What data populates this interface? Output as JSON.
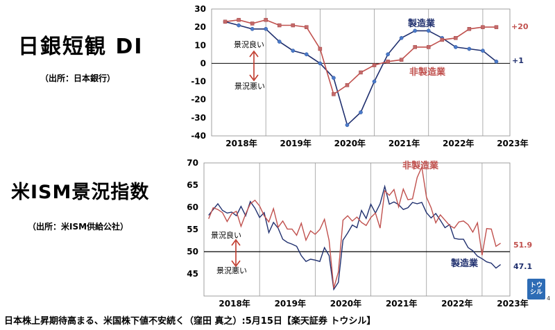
{
  "tankan": {
    "title": "日銀短観 DI",
    "source": "（出所：日本銀行）"
  },
  "ism": {
    "title": "米ISM景況指数",
    "source": "（出所：米ISM供給公社）"
  },
  "footer": "日本株上昇期待高まる、米国株下値不安続く（窪田 真之）:5月15日【楽天証券 トウシル】",
  "logo": "トウシル",
  "page_number": "4",
  "chart_data": [
    {
      "type": "line",
      "title": "日銀短観 DI",
      "x_ticks": [
        "2018年",
        "2019年",
        "2020年",
        "2021年",
        "2022年",
        "2023年"
      ],
      "ylim": [
        -40,
        30
      ],
      "y_ticks": [
        30,
        20,
        10,
        0,
        -10,
        -20,
        -30,
        -40
      ],
      "x": [
        2018.0,
        2018.25,
        2018.5,
        2018.75,
        2019.0,
        2019.25,
        2019.5,
        2019.75,
        2020.0,
        2020.25,
        2020.5,
        2020.75,
        2021.0,
        2021.25,
        2021.5,
        2021.75,
        2022.0,
        2022.25,
        2022.5,
        2022.75,
        2023.0
      ],
      "series": [
        {
          "name": "製造業",
          "color": "#1f2f6e",
          "values": [
            23,
            21,
            19,
            19,
            12,
            7,
            5,
            0,
            -8,
            -34,
            -27,
            -10,
            5,
            14,
            18,
            18,
            14,
            9,
            8,
            7,
            1
          ]
        },
        {
          "name": "非製造業",
          "color": "#c0504d",
          "values": [
            23,
            24,
            22,
            24,
            21,
            21,
            20,
            8,
            -17,
            -12,
            -5,
            -1,
            1,
            2,
            9,
            9,
            13,
            14,
            19,
            20,
            20
          ]
        }
      ],
      "annotations": {
        "good": "景況良い",
        "bad": "景況悪い",
        "mfg_end": "+1",
        "nonmfg_end": "+20",
        "mfg_label": "製造業",
        "nonmfg_label": "非製造業"
      }
    },
    {
      "type": "line",
      "title": "米ISM景況指数",
      "x_ticks": [
        "2018年",
        "2019年",
        "2020年",
        "2021年",
        "2022年",
        "2023年"
      ],
      "ylim": [
        40,
        70
      ],
      "y_ticks": [
        70,
        65,
        60,
        55,
        50,
        45
      ],
      "reference_line": 50,
      "x_start": 2017.833,
      "x_step": 0.08333,
      "series": [
        {
          "name": "製造業",
          "color": "#1f2f6e",
          "values": [
            58.2,
            59.5,
            60.8,
            59.3,
            58.7,
            58.9,
            58.1,
            60.2,
            58.1,
            61.3,
            59.8,
            57.7,
            58.8,
            54.3,
            56.6,
            55.3,
            52.8,
            52.1,
            51.7,
            51.2,
            49.1,
            47.8,
            48.3,
            48.1,
            47.8,
            50.9,
            49.1,
            41.5,
            43.1,
            52.6,
            54.2,
            56.0,
            55.4,
            59.3,
            57.5,
            60.7,
            58.7,
            60.8,
            64.7,
            60.7,
            61.2,
            60.6,
            59.5,
            59.9,
            61.1,
            60.8,
            61.1,
            58.8,
            57.6,
            58.6,
            57.1,
            55.4,
            56.1,
            53.0,
            52.8,
            52.8,
            50.9,
            50.2,
            49.0,
            48.4,
            47.7,
            47.4,
            46.3,
            47.1
          ]
        },
        {
          "name": "非製造業",
          "color": "#c0504d",
          "values": [
            57.4,
            59.9,
            59.5,
            58.8,
            56.8,
            58.6,
            59.1,
            55.7,
            58.5,
            60.8,
            61.6,
            60.3,
            58.1,
            56.7,
            59.7,
            55.5,
            56.9,
            55.1,
            55.1,
            53.7,
            56.4,
            52.6,
            54.7,
            53.9,
            55.0,
            57.3,
            52.5,
            41.8,
            45.4,
            57.1,
            58.1,
            56.9,
            57.8,
            56.6,
            55.9,
            57.7,
            58.7,
            55.3,
            63.7,
            62.7,
            64.0,
            60.1,
            64.1,
            61.7,
            61.9,
            66.7,
            69.1,
            62.3,
            59.9,
            56.5,
            58.3,
            57.1,
            55.9,
            55.3,
            56.7,
            56.9,
            56.1,
            54.4,
            56.5,
            49.2,
            55.2,
            55.1,
            51.2,
            51.9
          ]
        }
      ],
      "annotations": {
        "good": "景況良い",
        "bad": "景況悪い",
        "mfg_end": "47.1",
        "nonmfg_end": "51.9",
        "mfg_label": "製造業",
        "nonmfg_label": "非製造業"
      }
    }
  ]
}
